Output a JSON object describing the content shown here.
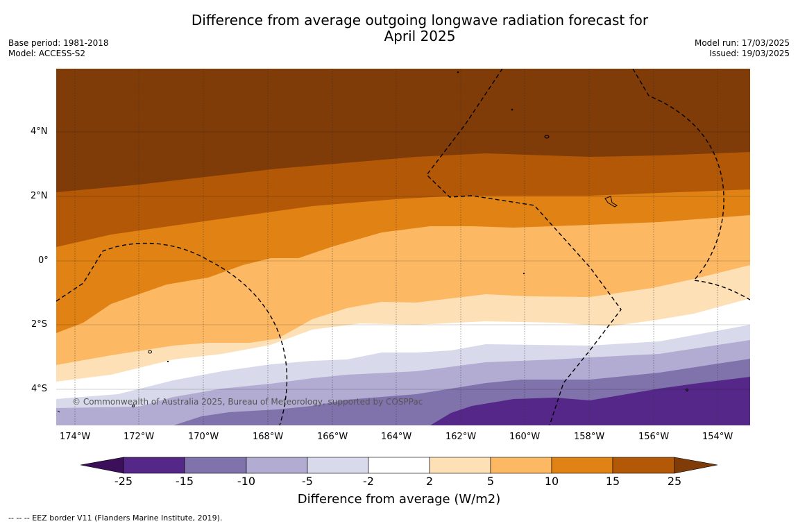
{
  "title_line1": "Difference from average outgoing longwave radiation forecast for",
  "title_line2": "April 2025",
  "base_period": "Base period: 1981-2018",
  "model": "Model: ACCESS-S2",
  "model_run": "Model run: 17/03/2025",
  "issued": "Issued: 19/03/2025",
  "copyright": "© Commonwealth of Australia 2025, Bureau of Meteorology, supported by COSPPac",
  "lat_labels": [
    "4°N",
    "2°N",
    "0°",
    "2°S",
    "4°S"
  ],
  "lon_labels": [
    "174°W",
    "172°W",
    "170°W",
    "168°W",
    "166°W",
    "164°W",
    "162°W",
    "160°W",
    "158°W",
    "156°W",
    "154°W"
  ],
  "colorbar": {
    "labels": [
      "-25",
      "-15",
      "-10",
      "-5",
      "-2",
      "2",
      "5",
      "10",
      "15",
      "25"
    ],
    "colors": [
      "#3b0f59",
      "#542788",
      "#8073ac",
      "#b2abd2",
      "#d8daeb",
      "#ffffff",
      "#fee0b6",
      "#fdb863",
      "#e08214",
      "#b35806",
      "#7f3b08"
    ],
    "title": "Difference from average (W/m2)"
  },
  "footnote": "--  --  -- EEZ border V11 (Flanders Marine Institute, 2019)."
}
